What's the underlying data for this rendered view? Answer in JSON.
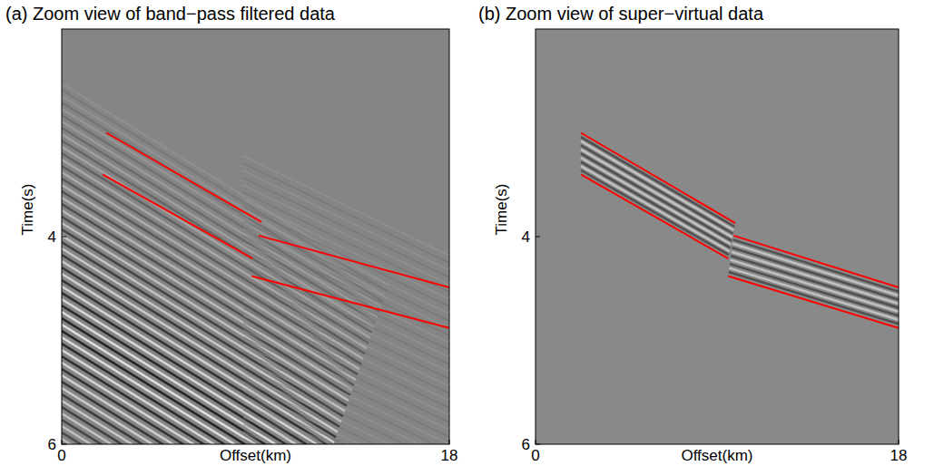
{
  "chart_data": [
    {
      "type": "line",
      "title": "(a) Zoom view of band−pass filtered data",
      "x_label": "Offset(km)",
      "y_label": "Time(s)",
      "xlim": [
        0,
        18
      ],
      "ylim": [
        6,
        2
      ],
      "xticks": [
        0,
        18
      ],
      "yticks": [
        4,
        6
      ],
      "series": [
        {
          "color": "#ff0000",
          "x": [
            2.07,
            9.28
          ],
          "values": [
            3.0,
            3.86
          ]
        },
        {
          "color": "#ff0000",
          "x": [
            1.9,
            8.86
          ],
          "values": [
            3.4,
            4.21
          ]
        },
        {
          "color": "#ff0000",
          "x": [
            9.15,
            18
          ],
          "values": [
            3.99,
            4.49
          ]
        },
        {
          "color": "#ff0000",
          "x": [
            8.82,
            18
          ],
          "values": [
            4.38,
            4.88
          ]
        }
      ]
    },
    {
      "type": "line",
      "title": "(b) Zoom view of super−virtual data",
      "x_label": "Offset(km)",
      "y_label": "Time(s)",
      "xlim": [
        0,
        18
      ],
      "ylim": [
        6,
        2
      ],
      "xticks": [
        0,
        18
      ],
      "yticks": [
        4,
        6
      ],
      "series": [
        {
          "color": "#ff0000",
          "x": [
            2.25,
            9.9
          ],
          "values": [
            3.0,
            3.87
          ]
        },
        {
          "color": "#ff0000",
          "x": [
            2.25,
            9.55
          ],
          "values": [
            3.4,
            4.21
          ]
        },
        {
          "color": "#ff0000",
          "x": [
            9.82,
            18
          ],
          "values": [
            3.99,
            4.49
          ]
        },
        {
          "color": "#ff0000",
          "x": [
            9.55,
            18
          ],
          "values": [
            4.38,
            4.88
          ]
        }
      ]
    }
  ]
}
